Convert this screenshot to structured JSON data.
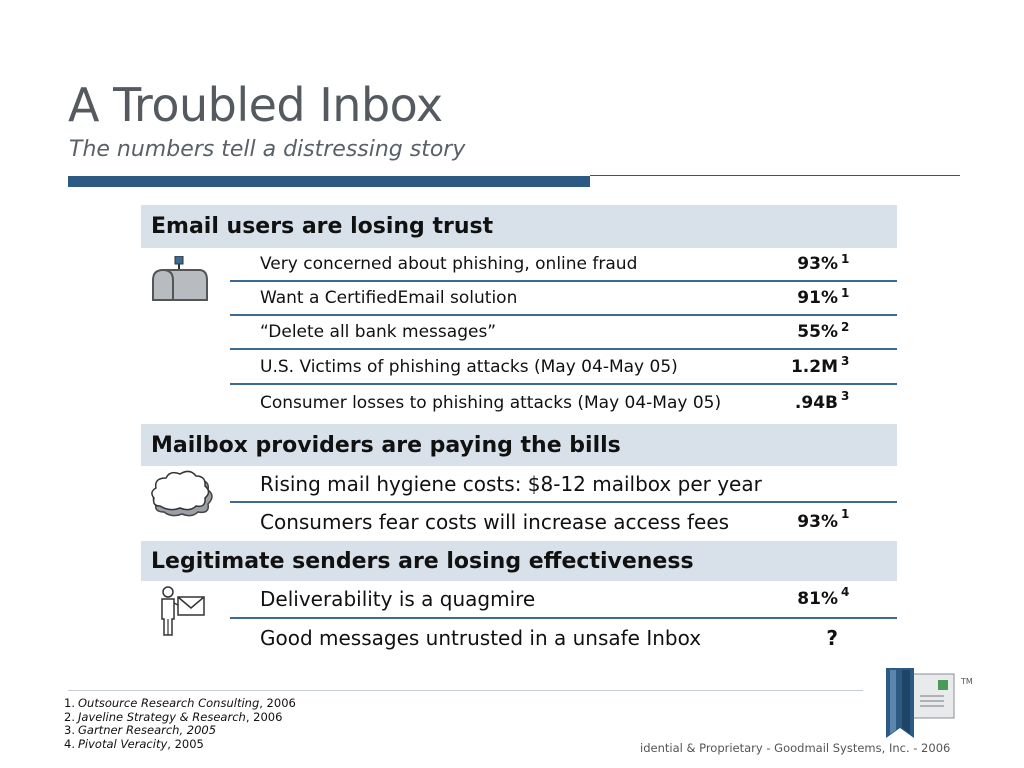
{
  "header": {
    "title": "A Troubled Inbox",
    "subtitle": "The numbers tell a distressing story"
  },
  "sections": [
    {
      "heading": "Email users are losing trust",
      "icon": "mailbox-icon",
      "rows": [
        {
          "text": "Very concerned about phishing, online fraud",
          "value": "93%",
          "ref": "1"
        },
        {
          "text": "Want a CertifiedEmail solution",
          "value": "91%",
          "ref": "1"
        },
        {
          "text": "“Delete all bank messages”",
          "value": "55%",
          "ref": "2"
        },
        {
          "text": "U.S. Victims of phishing attacks (May 04-May 05)",
          "value": "1.2M",
          "ref": "3"
        },
        {
          "text": "Consumer losses to phishing attacks (May 04-May 05)",
          "value": ".94B",
          "ref": "3"
        }
      ]
    },
    {
      "heading": "Mailbox providers are paying the bills",
      "icon": "cloud-icon",
      "rows": [
        {
          "text": "Rising mail hygiene costs: $8-12 mailbox per year",
          "value": "",
          "ref": ""
        },
        {
          "text": "Consumers fear costs will increase access fees",
          "value": "93%",
          "ref": "1"
        }
      ]
    },
    {
      "heading": "Legitimate senders are losing effectiveness",
      "icon": "person-with-envelope-icon",
      "rows": [
        {
          "text": "Deliverability is a quagmire",
          "value": "81%",
          "ref": "4"
        },
        {
          "text": "Good messages untrusted in a unsafe Inbox",
          "value": "?",
          "ref": ""
        }
      ]
    }
  ],
  "footnotes": [
    {
      "num": "1.",
      "source": "Outsource Research Consulting",
      "year": ", 2006"
    },
    {
      "num": "2.",
      "source": "Javeline Strategy & Research",
      "year": ", 2006"
    },
    {
      "num": "3.",
      "source": "Gartner Research, 2005",
      "year": ""
    },
    {
      "num": "4.",
      "source": "Pivotal Veracity",
      "year": ", 2005"
    }
  ],
  "footer": {
    "copyright": "idential & Proprietary - Goodmail Systems, Inc. - 2006",
    "trademark": "TM",
    "logo_icon": "goodmail-logo-icon"
  },
  "colors": {
    "accent": "#2d5a82",
    "section_bg": "#d8e0ea",
    "title": "#555a60"
  }
}
